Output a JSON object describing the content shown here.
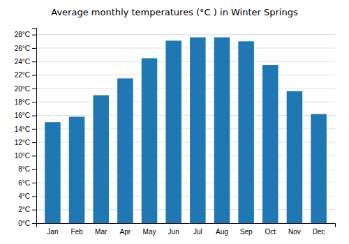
{
  "chart_data": {
    "type": "bar",
    "title": "Average monthly temperatures (°C ) in Winter Springs",
    "categories": [
      "Jan",
      "Feb",
      "Mar",
      "Apr",
      "May",
      "Jun",
      "Jul",
      "Aug",
      "Sep",
      "Oct",
      "Nov",
      "Dec"
    ],
    "values": [
      15.0,
      15.8,
      19.0,
      21.5,
      24.5,
      27.1,
      27.6,
      27.6,
      27.0,
      23.5,
      19.6,
      16.2
    ],
    "ylim": [
      0,
      29
    ],
    "yticks": [
      {
        "value": 0,
        "label": "0°C"
      },
      {
        "value": 2,
        "label": "2°C"
      },
      {
        "value": 4,
        "label": "4°C"
      },
      {
        "value": 6,
        "label": "6°C"
      },
      {
        "value": 8,
        "label": "8°C"
      },
      {
        "value": 10,
        "label": "10°C"
      },
      {
        "value": 12,
        "label": "12°C"
      },
      {
        "value": 14,
        "label": "14°C"
      },
      {
        "value": 16,
        "label": "16°C"
      },
      {
        "value": 18,
        "label": "18°C"
      },
      {
        "value": 20,
        "label": "20°C"
      },
      {
        "value": 22,
        "label": "22°C"
      },
      {
        "value": 24,
        "label": "24°C"
      },
      {
        "value": 26,
        "label": "26°C"
      },
      {
        "value": 28,
        "label": "28°C"
      }
    ],
    "grid": true
  }
}
